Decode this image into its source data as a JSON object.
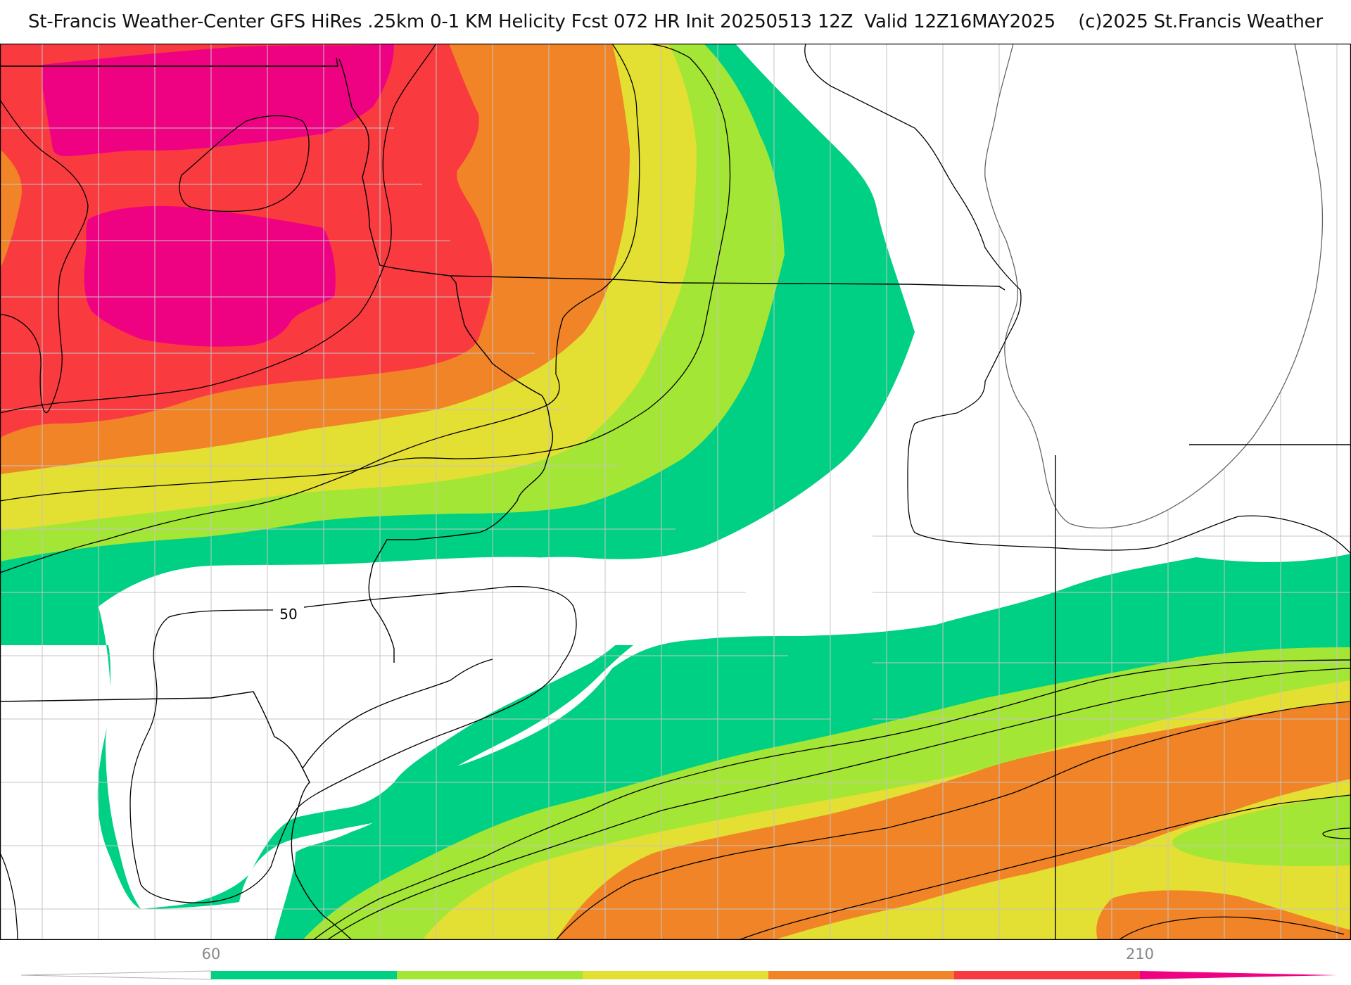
{
  "header": {
    "title": "St-Francis Weather-Center GFS HiRes .25km 0-1 KM Helicity Fcst 072 HR Init 20250513 12Z  Valid 12Z16MAY2025    (c)2025 St.Francis Weather"
  },
  "map": {
    "contour_labels": [
      "50"
    ],
    "fill_colors": {
      "white": "#ffffff",
      "green": "#00d084",
      "lime": "#a3e635",
      "yellow": "#e4df33",
      "orange": "#f08427",
      "red": "#f93b3f",
      "magenta": "#ee0282"
    },
    "line_colors": {
      "contour": "#000000",
      "state_border": "#000000",
      "county_border": "#c4c4c4",
      "lake_outline": "#666666"
    }
  },
  "legend": {
    "tick_labels": [
      "60",
      "210"
    ],
    "colors": [
      "#ffffff",
      "#00d084",
      "#a3e635",
      "#e4df33",
      "#f08427",
      "#f93b3f",
      "#ee0282"
    ]
  }
}
